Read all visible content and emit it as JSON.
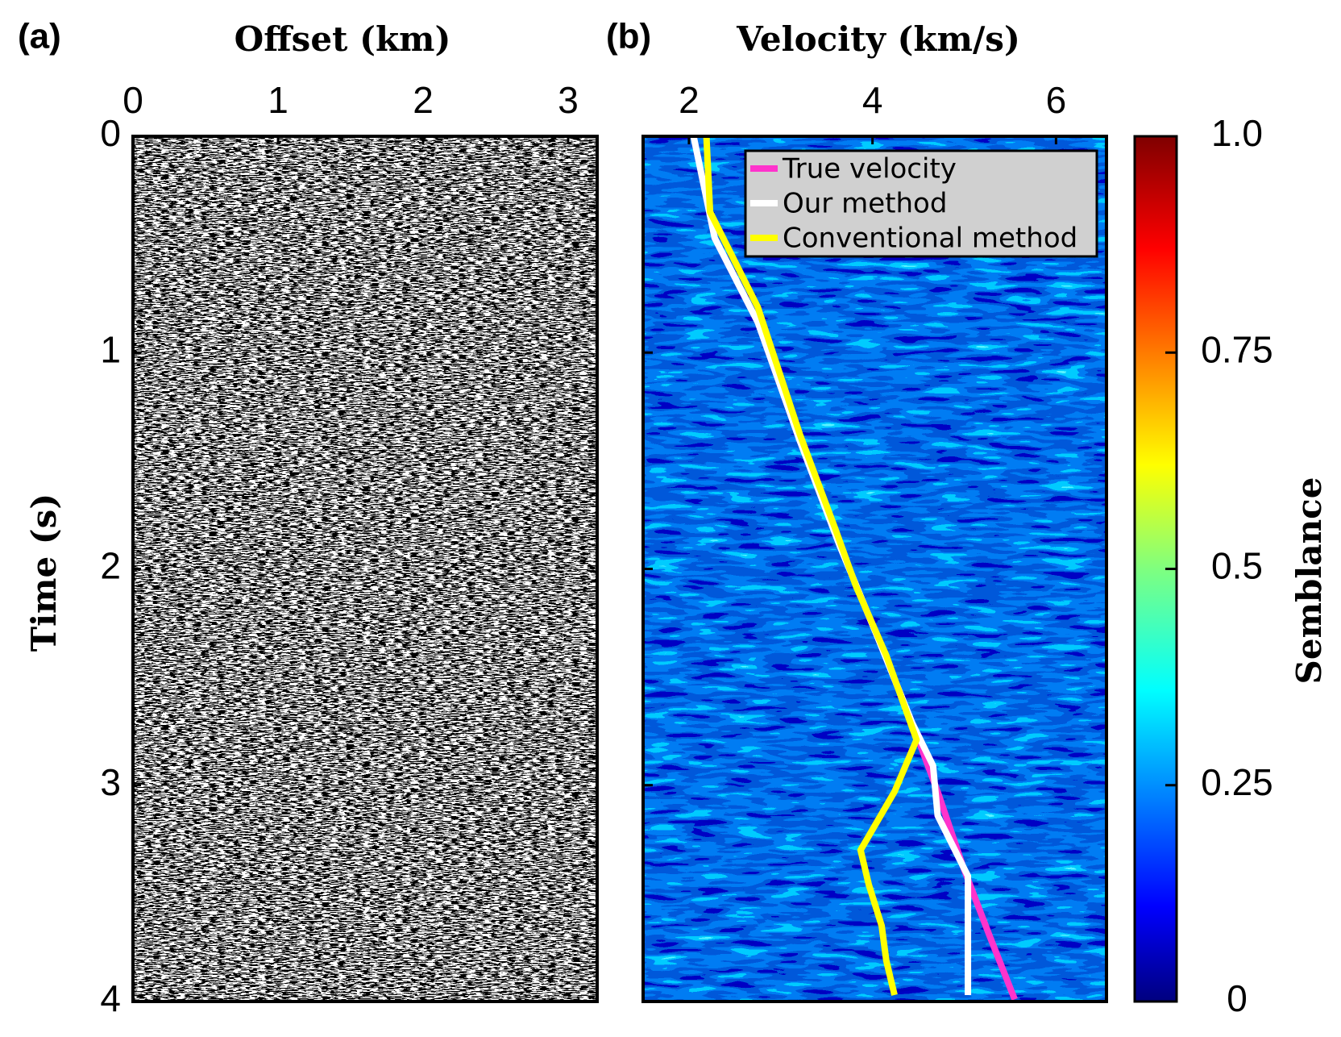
{
  "chart_data": [
    {
      "type": "image",
      "title": "(a)",
      "xlabel": "Offset (km)",
      "ylabel": "Time (s)",
      "xlim": [
        0,
        3.2
      ],
      "xticks": [
        0,
        1,
        2,
        3
      ],
      "ylim": [
        4,
        0
      ],
      "yticks": [
        0,
        1,
        2,
        3,
        4
      ]
    },
    {
      "type": "line",
      "title": "(b)",
      "xlabel": "Velocity (km/s)",
      "xlim": [
        1.5,
        6.55
      ],
      "xticks": [
        2,
        4,
        6
      ],
      "ylim": [
        4,
        0
      ],
      "yticks": [
        0,
        1,
        2,
        3,
        4
      ],
      "legend": "upper right",
      "series": [
        {
          "name": "True velocity",
          "color": "#ff33cc",
          "x": [
            2.05,
            2.28,
            2.75,
            3.21,
            3.64,
            4.06,
            4.43,
            4.71,
            4.99,
            5.27,
            5.55
          ],
          "y": [
            0,
            0.47,
            0.86,
            1.41,
            1.89,
            2.32,
            2.71,
            3.03,
            3.38,
            3.69,
            3.99
          ]
        },
        {
          "name": "Our method",
          "color": "#ffffff",
          "x": [
            2.05,
            2.28,
            2.75,
            3.21,
            3.64,
            4.06,
            4.43,
            4.66,
            4.71,
            5.04,
            5.04
          ],
          "y": [
            0,
            0.47,
            0.86,
            1.41,
            1.89,
            2.32,
            2.71,
            2.91,
            3.14,
            3.42,
            3.97
          ]
        },
        {
          "name": "Conventional method",
          "color": "#ffff00",
          "x": [
            2.19,
            2.23,
            2.75,
            3.21,
            3.59,
            3.82,
            4.15,
            4.48,
            4.24,
            3.87,
            3.96,
            4.1,
            4.15,
            4.24
          ],
          "y": [
            0,
            0.35,
            0.79,
            1.38,
            1.81,
            2.08,
            2.4,
            2.79,
            3.03,
            3.3,
            3.46,
            3.65,
            3.81,
            3.97
          ]
        }
      ],
      "colorbar": {
        "label": "Semblance",
        "colormap": "jet",
        "zlim": [
          0,
          1
        ],
        "ticks": [
          0,
          0.25,
          0.5,
          0.75,
          {
            "value": 1,
            "label": "1.0"
          }
        ]
      }
    }
  ]
}
